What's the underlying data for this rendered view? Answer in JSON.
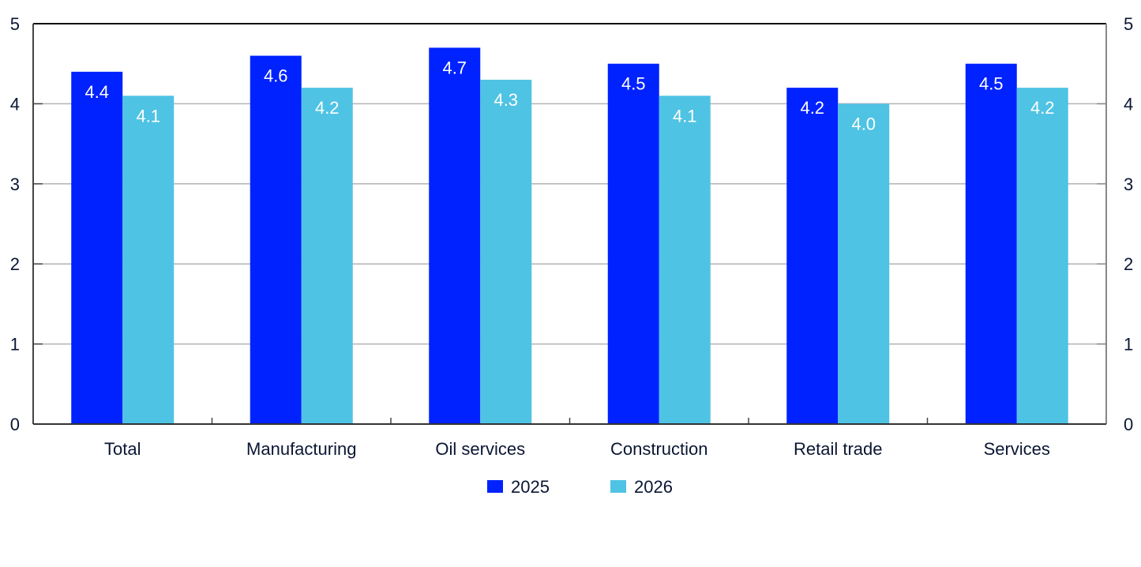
{
  "chart_data": {
    "type": "bar",
    "title": "",
    "xlabel": "",
    "ylabel": "",
    "ylim": [
      0,
      5
    ],
    "yticks": [
      0,
      1,
      2,
      3,
      4,
      5
    ],
    "y2ticks": [
      0,
      1,
      2,
      3,
      4,
      5
    ],
    "grid": true,
    "legend_position": "bottom-center",
    "categories": [
      "Total",
      "Manufacturing",
      "Oil services",
      "Construction",
      "Retail trade",
      "Services"
    ],
    "series": [
      {
        "name": "2025",
        "color": "#0022ff",
        "values": [
          4.4,
          4.6,
          4.7,
          4.5,
          4.2,
          4.5
        ],
        "labels": [
          "4.4",
          "4.6",
          "4.7",
          "4.5",
          "4.2",
          "4.5"
        ]
      },
      {
        "name": "2026",
        "color": "#4fc3e3",
        "values": [
          4.1,
          4.2,
          4.3,
          4.1,
          4.0,
          4.2
        ],
        "labels": [
          "4.1",
          "4.2",
          "4.3",
          "4.1",
          "4.0",
          "4.2"
        ]
      }
    ]
  }
}
